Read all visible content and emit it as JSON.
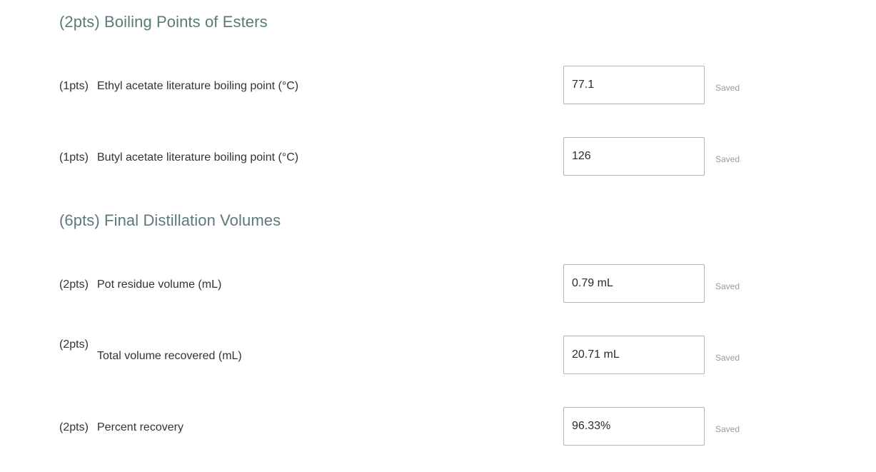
{
  "sections": [
    {
      "title": "(2pts) Boiling Points of Esters",
      "questions": [
        {
          "points": "(1pts)",
          "label": "Ethyl acetate literature boiling point (°C)",
          "value": "77.1",
          "status": "Saved"
        },
        {
          "points": "(1pts)",
          "label": "Butyl acetate literature boiling point (°C)",
          "value": "126",
          "status": "Saved"
        }
      ]
    },
    {
      "title": "(6pts) Final Distillation Volumes",
      "questions": [
        {
          "points": "(2pts)",
          "label": "Pot residue volume (mL)",
          "value": "0.79 mL",
          "status": "Saved"
        },
        {
          "points": "(2pts)",
          "label": "Total volume recovered (mL)",
          "value": "20.71 mL",
          "status": "Saved"
        },
        {
          "points": "(2pts)",
          "label": "Percent recovery",
          "value": "96.33%",
          "status": "Saved"
        }
      ]
    }
  ]
}
